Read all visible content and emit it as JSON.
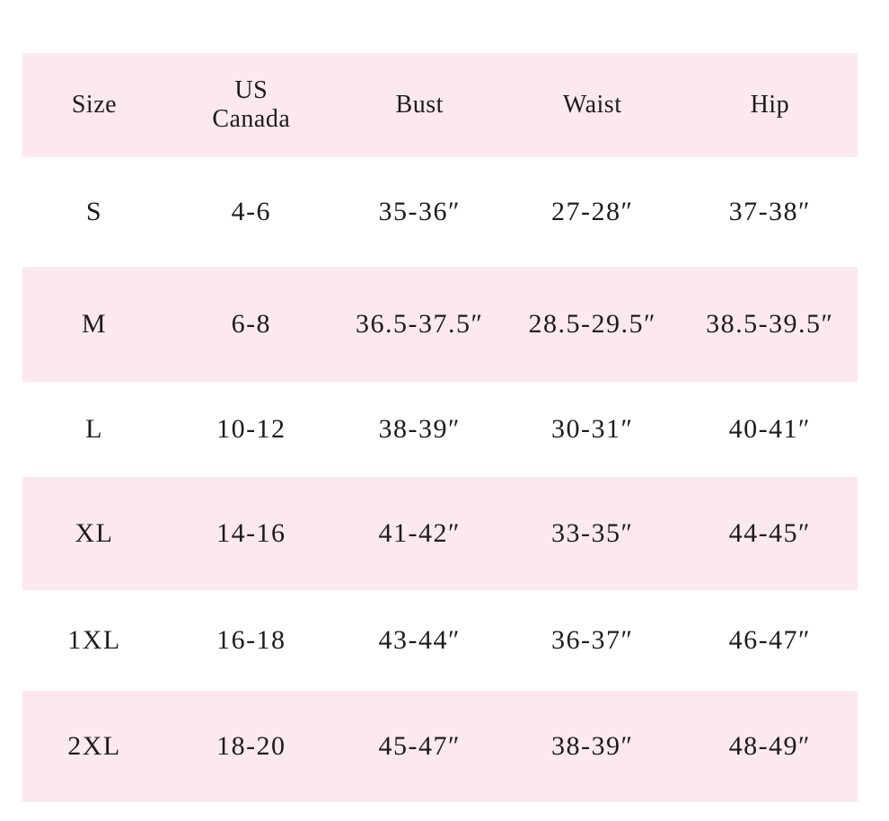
{
  "chart_data": {
    "type": "table",
    "columns": [
      "Size",
      "US\nCanada",
      "Bust",
      "Waist",
      "Hip"
    ],
    "rows": [
      [
        "S",
        "4-6",
        "35-36″",
        "27-28″",
        "37-38″"
      ],
      [
        "M",
        "6-8",
        "36.5-37.5″",
        "28.5-29.5″",
        "38.5-39.5″"
      ],
      [
        "L",
        "10-12",
        "38-39″",
        "30-31″",
        "40-41″"
      ],
      [
        "XL",
        "14-16",
        "41-42″",
        "33-35″",
        "44-45″"
      ],
      [
        "1XL",
        "16-18",
        "43-44″",
        "36-37″",
        "46-47″"
      ],
      [
        "2XL",
        "18-20",
        "45-47″",
        "38-39″",
        "48-49″"
      ]
    ],
    "layout": {
      "legend": "none",
      "grid": "off",
      "banding": "header band pink; data rows alternate white and pink (S white, M pink, L white, XL pink, 1XL white, 2XL pink)",
      "column_alignment": "center"
    },
    "colors": {
      "band_pink": "#fce8ef",
      "text": "#1c1c1c",
      "background": "#ffffff"
    }
  }
}
